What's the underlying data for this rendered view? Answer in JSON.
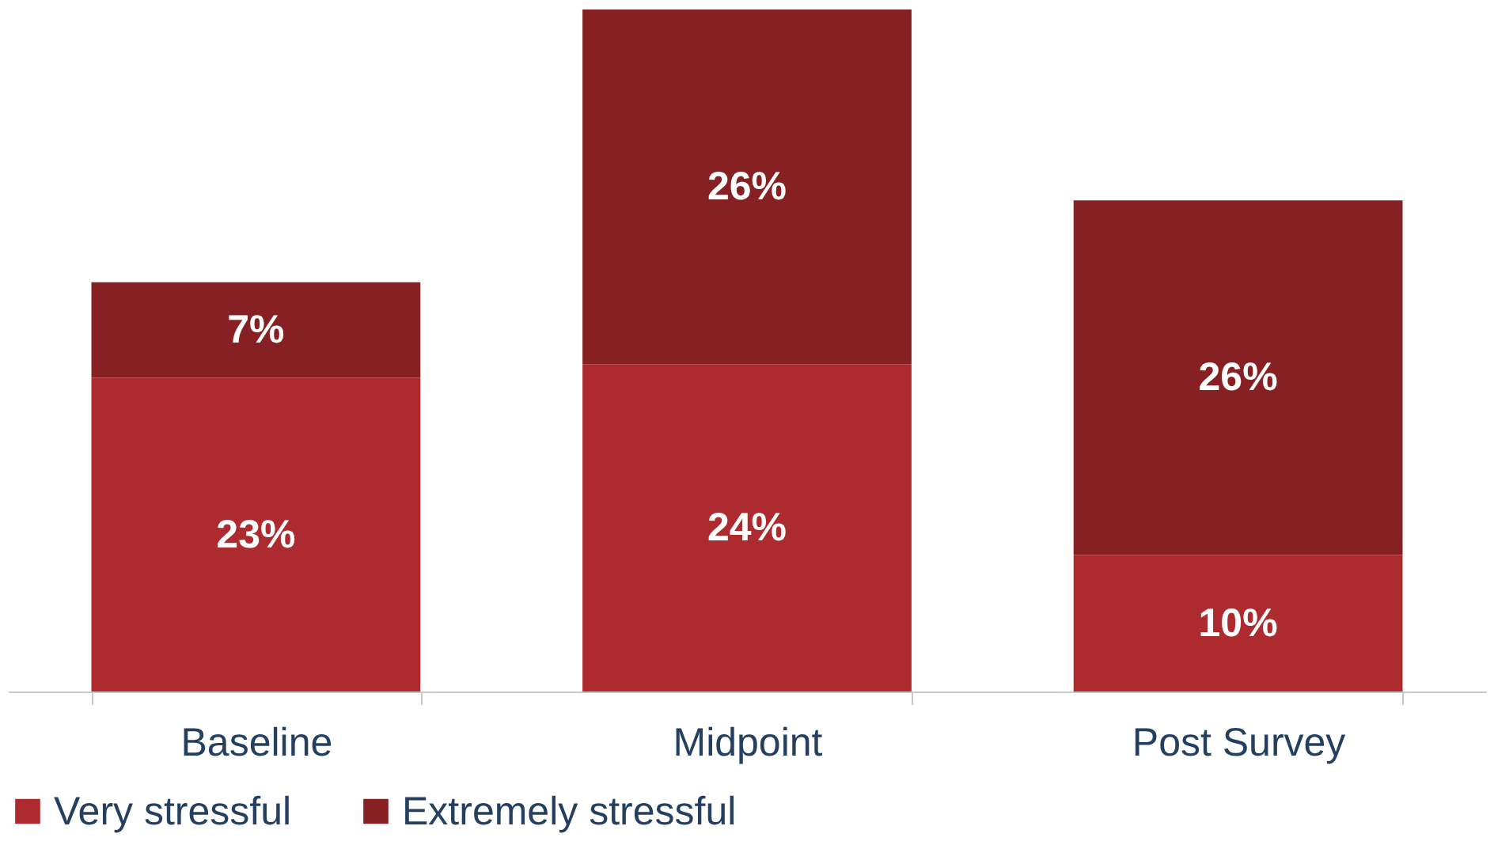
{
  "chart_data": {
    "type": "bar",
    "stacked": true,
    "legend": "bottom",
    "grid": false,
    "categories": [
      "Baseline",
      "Midpoint",
      "Post Survey"
    ],
    "series": [
      {
        "name": "Very stressful",
        "color": "#ad2b2e",
        "values": [
          23,
          24,
          10
        ],
        "value_labels": [
          "23%",
          "24%",
          "10%"
        ]
      },
      {
        "name": "Extremely stressful",
        "color": "#862022",
        "values": [
          7,
          26,
          26
        ],
        "value_labels": [
          "7%",
          "26%",
          "26%"
        ]
      }
    ]
  }
}
